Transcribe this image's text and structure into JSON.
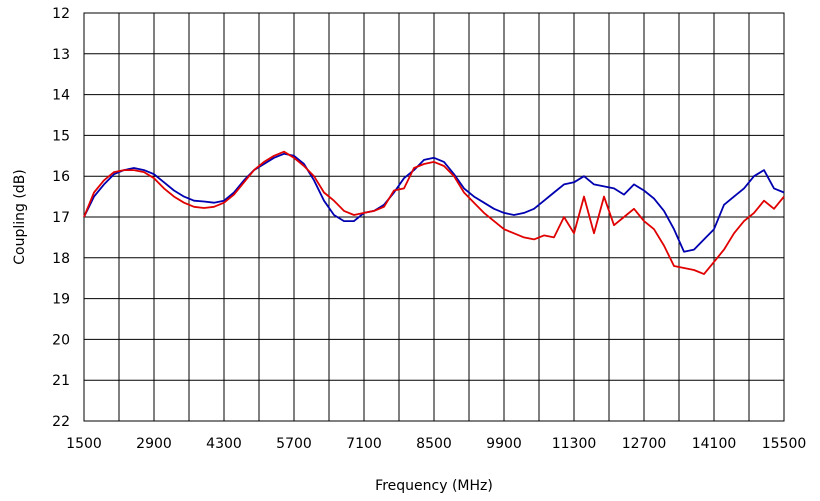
{
  "chart_data": {
    "type": "line",
    "xlabel": "Frequency (MHz)",
    "ylabel": "Coupling (dB)",
    "xlim": [
      1500,
      15500
    ],
    "ylim": [
      12,
      22
    ],
    "y_inverted": true,
    "xticks": [
      1500,
      2900,
      4300,
      5700,
      7100,
      8500,
      9900,
      11300,
      12700,
      14100,
      15500
    ],
    "yticks": [
      12,
      13,
      14,
      15,
      16,
      17,
      18,
      19,
      20,
      21,
      22
    ],
    "xtick_labels": [
      "1500",
      "2900",
      "4300",
      "5700",
      "7100",
      "8500",
      "9900",
      "11300",
      "12700",
      "14100",
      "15500"
    ],
    "ytick_labels": [
      "12",
      "13",
      "14",
      "15",
      "16",
      "17",
      "18",
      "19",
      "20",
      "21",
      "22"
    ],
    "grid": true,
    "colors": {
      "blue": "#0000b0",
      "red": "#e00000"
    },
    "series": [
      {
        "color": "blue",
        "x": [
          1500,
          1700,
          1900,
          2100,
          2300,
          2500,
          2700,
          2900,
          3100,
          3300,
          3500,
          3700,
          3900,
          4100,
          4300,
          4500,
          4700,
          4900,
          5100,
          5300,
          5500,
          5700,
          5900,
          6100,
          6300,
          6500,
          6700,
          6900,
          7100,
          7300,
          7500,
          7700,
          7900,
          8100,
          8300,
          8500,
          8700,
          8900,
          9100,
          9300,
          9500,
          9700,
          9900,
          10100,
          10300,
          10500,
          10700,
          10900,
          11100,
          11300,
          11500,
          11700,
          11900,
          12100,
          12300,
          12500,
          12700,
          12900,
          13100,
          13300,
          13500,
          13700,
          13900,
          14100,
          14300,
          14500,
          14700,
          14900,
          15100,
          15300,
          15500
        ],
        "y": [
          17.0,
          16.5,
          16.2,
          15.95,
          15.85,
          15.8,
          15.85,
          15.95,
          16.15,
          16.35,
          16.5,
          16.6,
          16.62,
          16.65,
          16.6,
          16.4,
          16.1,
          15.85,
          15.7,
          15.55,
          15.45,
          15.5,
          15.7,
          16.1,
          16.6,
          16.95,
          17.1,
          17.1,
          16.9,
          16.85,
          16.7,
          16.4,
          16.05,
          15.85,
          15.6,
          15.55,
          15.65,
          15.95,
          16.3,
          16.5,
          16.65,
          16.8,
          16.9,
          16.95,
          16.9,
          16.8,
          16.6,
          16.4,
          16.2,
          16.15,
          16.0,
          16.2,
          16.25,
          16.3,
          16.45,
          16.2,
          16.35,
          16.55,
          16.85,
          17.3,
          17.85,
          17.8,
          17.55,
          17.3,
          16.7,
          16.5,
          16.3,
          16.0,
          15.85,
          16.3,
          16.4
        ]
      },
      {
        "color": "red",
        "x": [
          1500,
          1700,
          1900,
          2100,
          2300,
          2500,
          2700,
          2900,
          3100,
          3300,
          3500,
          3700,
          3900,
          4100,
          4300,
          4500,
          4700,
          4900,
          5100,
          5300,
          5500,
          5700,
          5900,
          6100,
          6300,
          6500,
          6700,
          6900,
          7100,
          7300,
          7500,
          7700,
          7900,
          8100,
          8300,
          8500,
          8700,
          8900,
          9100,
          9300,
          9500,
          9700,
          9900,
          10100,
          10300,
          10500,
          10700,
          10900,
          11100,
          11300,
          11500,
          11700,
          11900,
          12100,
          12300,
          12500,
          12700,
          12900,
          13100,
          13300,
          13500,
          13700,
          13900,
          14100,
          14300,
          14500,
          14700,
          14900,
          15100,
          15300,
          15500
        ],
        "y": [
          17.0,
          16.4,
          16.1,
          15.9,
          15.85,
          15.85,
          15.9,
          16.05,
          16.3,
          16.5,
          16.65,
          16.75,
          16.78,
          16.75,
          16.65,
          16.45,
          16.15,
          15.85,
          15.65,
          15.5,
          15.4,
          15.55,
          15.75,
          16.0,
          16.4,
          16.6,
          16.85,
          16.95,
          16.9,
          16.85,
          16.75,
          16.35,
          16.3,
          15.8,
          15.7,
          15.65,
          15.75,
          16.0,
          16.4,
          16.65,
          16.9,
          17.1,
          17.3,
          17.4,
          17.5,
          17.55,
          17.45,
          17.5,
          17.0,
          17.4,
          16.5,
          17.4,
          16.5,
          17.2,
          17.0,
          16.8,
          17.1,
          17.3,
          17.7,
          18.2,
          18.25,
          18.3,
          18.4,
          18.1,
          17.8,
          17.4,
          17.1,
          16.9,
          16.6,
          16.8,
          16.5
        ]
      }
    ]
  }
}
